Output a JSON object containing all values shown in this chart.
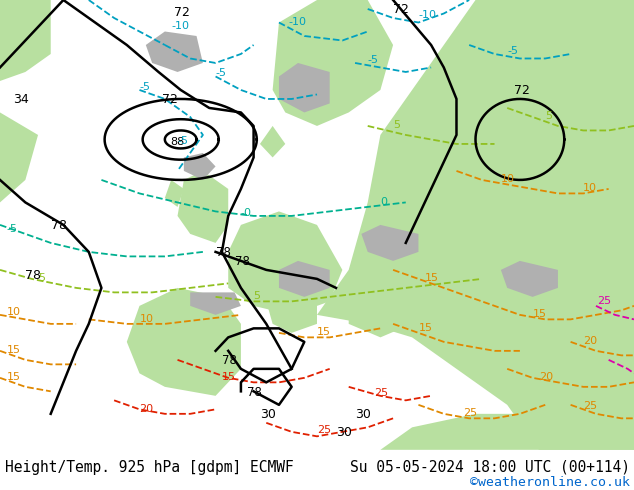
{
  "title_left": "Height/Temp. 925 hPa [gdpm] ECMWF",
  "title_right": "Su 05-05-2024 18:00 UTC (00+114)",
  "credit": "©weatheronline.co.uk",
  "credit_color": "#0066cc",
  "bg_color": "#ffffff",
  "footer_text_color": "#000000",
  "footer_fontsize": 10.5,
  "credit_fontsize": 9.5,
  "fig_width": 6.34,
  "fig_height": 4.9,
  "dpi": 100,
  "ocean_color": "#e8e8e8",
  "land_green_color": "#b8e0a0",
  "land_gray_color": "#b0b0b0",
  "black": "#000000",
  "cyan": "#00a0c0",
  "teal": "#00b090",
  "lime": "#90c020",
  "orange": "#e08800",
  "red": "#e02000",
  "magenta": "#dd00aa"
}
